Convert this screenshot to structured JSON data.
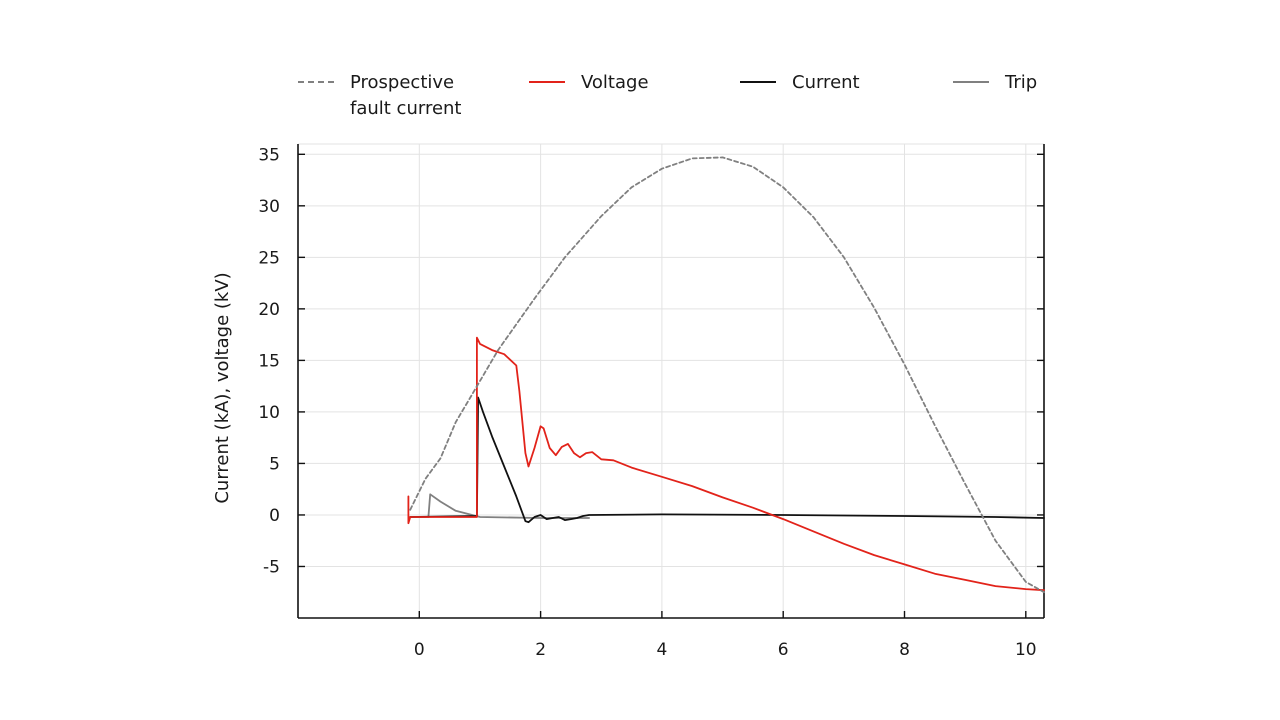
{
  "chart_data": {
    "type": "line",
    "ylabel": "Current (kA), voltage (kV)",
    "xlabel": "",
    "xlim": [
      -2.0,
      10.3
    ],
    "ylim": [
      -10,
      36
    ],
    "xticks": [
      0,
      2,
      4,
      6,
      8,
      10
    ],
    "xtick_labels": [
      "0",
      "2",
      "4",
      "6",
      "8",
      "10"
    ],
    "yticks": [
      -5,
      0,
      5,
      10,
      15,
      20,
      25,
      30,
      35
    ],
    "ytick_labels": [
      "-5",
      "0",
      "5",
      "10",
      "15",
      "20",
      "25",
      "30",
      "35"
    ],
    "grid": true,
    "legend_position": "top",
    "series": [
      {
        "name": "Prospective\nfault current",
        "color": "#808080",
        "style": "dashed",
        "points": [
          [
            -0.15,
            0.5
          ],
          [
            0.1,
            3.5
          ],
          [
            0.35,
            5.5
          ],
          [
            0.6,
            9.0
          ],
          [
            0.85,
            11.5
          ],
          [
            1.1,
            14.0
          ],
          [
            1.3,
            16.0
          ],
          [
            1.6,
            18.5
          ],
          [
            1.9,
            21.0
          ],
          [
            2.4,
            25.0
          ],
          [
            3.0,
            29.0
          ],
          [
            3.5,
            31.8
          ],
          [
            4.0,
            33.6
          ],
          [
            4.5,
            34.6
          ],
          [
            5.0,
            34.7
          ],
          [
            5.5,
            33.8
          ],
          [
            6.0,
            31.8
          ],
          [
            6.5,
            28.9
          ],
          [
            7.0,
            25.0
          ],
          [
            7.5,
            20.1
          ],
          [
            8.0,
            14.6
          ],
          [
            8.5,
            8.7
          ],
          [
            9.0,
            3.0
          ],
          [
            9.5,
            -2.5
          ],
          [
            10.0,
            -6.5
          ],
          [
            10.3,
            -7.5
          ]
        ]
      },
      {
        "name": "Voltage",
        "color": "#e2231a",
        "style": "solid",
        "points": [
          [
            -0.18,
            1.8
          ],
          [
            -0.18,
            -0.8
          ],
          [
            -0.15,
            -0.2
          ],
          [
            0.95,
            -0.2
          ],
          [
            0.95,
            17.2
          ],
          [
            1.0,
            16.6
          ],
          [
            1.2,
            16.0
          ],
          [
            1.4,
            15.6
          ],
          [
            1.6,
            14.5
          ],
          [
            1.65,
            12.0
          ],
          [
            1.7,
            9.0
          ],
          [
            1.75,
            6.0
          ],
          [
            1.8,
            4.7
          ],
          [
            1.9,
            6.5
          ],
          [
            2.0,
            8.6
          ],
          [
            2.05,
            8.4
          ],
          [
            2.15,
            6.5
          ],
          [
            2.25,
            5.8
          ],
          [
            2.35,
            6.6
          ],
          [
            2.45,
            6.9
          ],
          [
            2.55,
            6.0
          ],
          [
            2.65,
            5.6
          ],
          [
            2.75,
            6.0
          ],
          [
            2.85,
            6.1
          ],
          [
            3.0,
            5.4
          ],
          [
            3.2,
            5.3
          ],
          [
            3.5,
            4.6
          ],
          [
            4.0,
            3.7
          ],
          [
            4.5,
            2.8
          ],
          [
            5.0,
            1.7
          ],
          [
            5.5,
            0.7
          ],
          [
            6.0,
            -0.4
          ],
          [
            6.5,
            -1.6
          ],
          [
            7.0,
            -2.8
          ],
          [
            7.5,
            -3.9
          ],
          [
            8.0,
            -4.8
          ],
          [
            8.5,
            -5.7
          ],
          [
            9.0,
            -6.3
          ],
          [
            9.5,
            -6.9
          ],
          [
            10.0,
            -7.2
          ],
          [
            10.3,
            -7.3
          ]
        ]
      },
      {
        "name": "Current",
        "color": "#111111",
        "style": "solid",
        "points": [
          [
            -0.15,
            -0.2
          ],
          [
            0.95,
            -0.1
          ],
          [
            0.97,
            11.4
          ],
          [
            1.05,
            10.0
          ],
          [
            1.2,
            7.6
          ],
          [
            1.4,
            4.7
          ],
          [
            1.6,
            1.8
          ],
          [
            1.75,
            -0.6
          ],
          [
            1.8,
            -0.7
          ],
          [
            1.9,
            -0.2
          ],
          [
            2.0,
            0.0
          ],
          [
            2.1,
            -0.4
          ],
          [
            2.2,
            -0.3
          ],
          [
            2.3,
            -0.2
          ],
          [
            2.4,
            -0.5
          ],
          [
            2.5,
            -0.4
          ],
          [
            2.6,
            -0.3
          ],
          [
            2.7,
            -0.1
          ],
          [
            2.8,
            0.0
          ],
          [
            4.0,
            0.05
          ],
          [
            6.0,
            0.0
          ],
          [
            8.0,
            -0.1
          ],
          [
            9.5,
            -0.2
          ],
          [
            10.3,
            -0.3
          ]
        ]
      },
      {
        "name": "Trip",
        "color": "#808080",
        "style": "solid",
        "points": [
          [
            -0.15,
            -0.2
          ],
          [
            0.15,
            -0.2
          ],
          [
            0.18,
            2.0
          ],
          [
            0.35,
            1.3
          ],
          [
            0.6,
            0.4
          ],
          [
            0.8,
            0.1
          ],
          [
            1.0,
            -0.2
          ],
          [
            2.0,
            -0.3
          ],
          [
            2.8,
            -0.3
          ]
        ]
      }
    ]
  }
}
